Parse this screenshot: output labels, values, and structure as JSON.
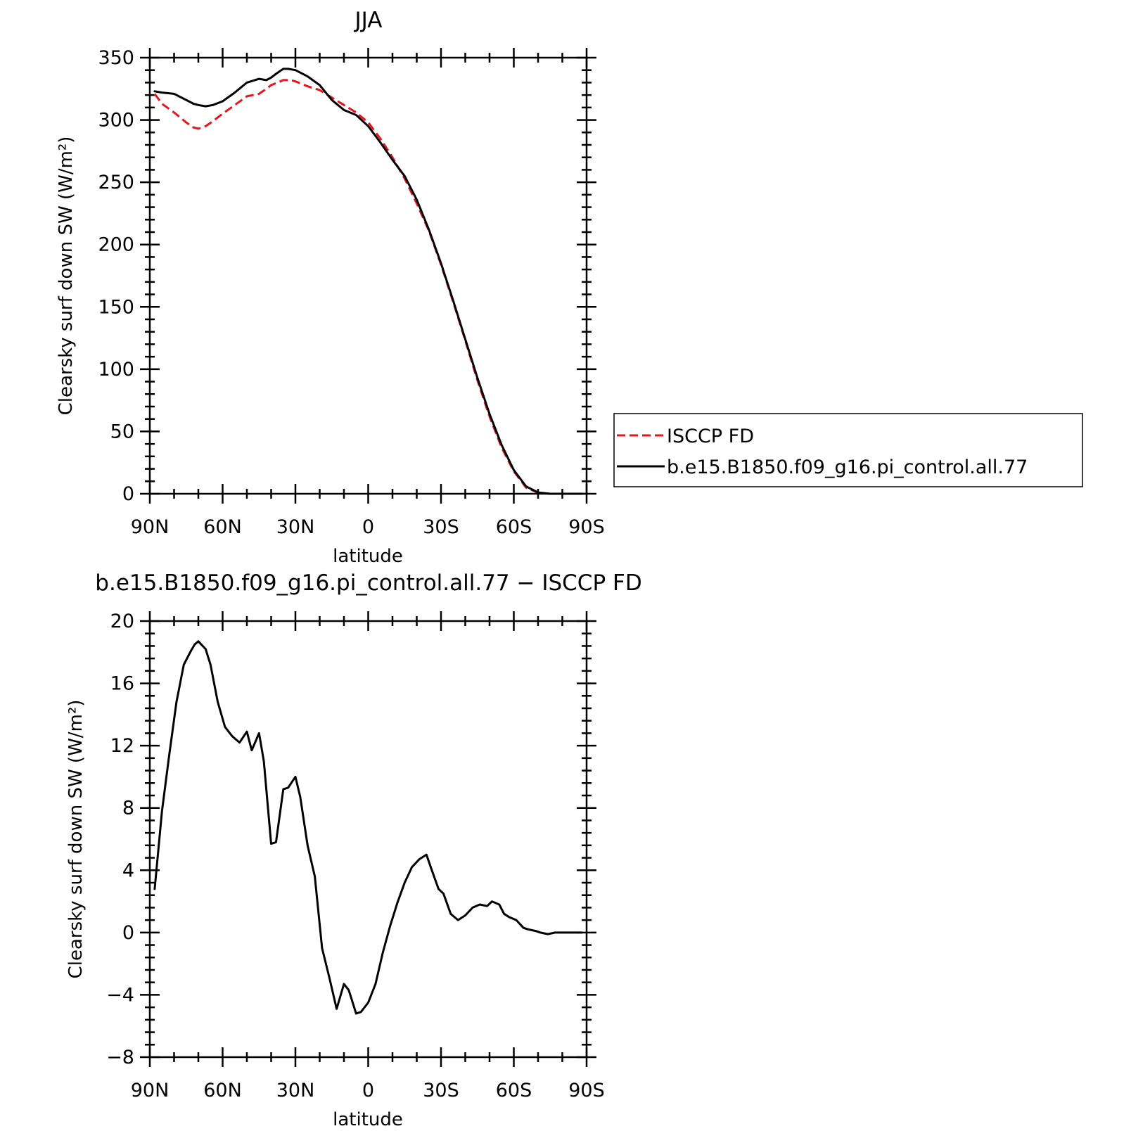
{
  "chart_data": [
    {
      "type": "line",
      "title": "JJA",
      "xlabel": "latitude",
      "ylabel": "Clearsky surf down SW (W/m²)",
      "xlim": [
        90,
        -90
      ],
      "ylim": [
        0,
        350
      ],
      "x_ticks": [
        {
          "value": 90,
          "label": "90N"
        },
        {
          "value": 60,
          "label": "60N"
        },
        {
          "value": 30,
          "label": "30N"
        },
        {
          "value": 0,
          "label": "0"
        },
        {
          "value": -30,
          "label": "30S"
        },
        {
          "value": -60,
          "label": "60S"
        },
        {
          "value": -90,
          "label": "90S"
        }
      ],
      "y_ticks": [
        0,
        50,
        100,
        150,
        200,
        250,
        300,
        350
      ],
      "grid": false,
      "legend": "right",
      "series": [
        {
          "name": "ISCCP FD",
          "color": "#e8141e",
          "dash": "dashed",
          "x": [
            88,
            85,
            80,
            75,
            72,
            70,
            67,
            64,
            60,
            55,
            50,
            45,
            42,
            40,
            35,
            32,
            30,
            25,
            20,
            15,
            10,
            5,
            0,
            -5,
            -10,
            -15,
            -20,
            -25,
            -30,
            -35,
            -40,
            -45,
            -50,
            -55,
            -60,
            -65,
            -70,
            -75,
            -80,
            -85,
            -88
          ],
          "y": [
            321,
            313,
            306,
            298,
            294,
            293,
            295,
            299,
            305,
            312,
            319,
            321,
            325,
            328,
            332,
            332,
            331,
            327,
            324,
            318,
            312,
            306,
            298,
            285,
            270,
            253,
            233,
            211,
            184,
            154,
            123,
            91,
            62,
            37,
            18,
            5,
            0.8,
            0,
            0,
            0,
            0
          ]
        },
        {
          "name": "b.e15.B1850.f09_g16.pi_control.all.77",
          "color": "#000000",
          "dash": "solid",
          "x": [
            88,
            85,
            80,
            75,
            72,
            70,
            67,
            64,
            60,
            55,
            50,
            45,
            42,
            40,
            38,
            35,
            33,
            30,
            25,
            20,
            15,
            10,
            5,
            0,
            -5,
            -10,
            -15,
            -20,
            -25,
            -30,
            -35,
            -40,
            -45,
            -50,
            -55,
            -60,
            -65,
            -70,
            -75,
            -80,
            -85,
            -88
          ],
          "y": [
            323,
            322,
            321,
            316,
            313,
            312,
            311,
            312,
            315,
            322,
            330,
            333,
            332,
            334,
            337,
            341,
            341,
            340,
            335,
            328,
            316,
            308,
            304,
            295,
            282,
            268,
            255,
            236,
            212,
            185,
            155,
            124,
            93,
            64,
            39,
            19,
            6,
            1,
            0,
            0,
            0,
            0
          ]
        }
      ]
    },
    {
      "type": "line",
      "title": "b.e15.B1850.f09_g16.pi_control.all.77 − ISCCP FD",
      "xlabel": "latitude",
      "ylabel": "Clearsky surf down SW (W/m²)",
      "xlim": [
        90,
        -90
      ],
      "ylim": [
        -8,
        20
      ],
      "x_ticks": [
        {
          "value": 90,
          "label": "90N"
        },
        {
          "value": 60,
          "label": "60N"
        },
        {
          "value": 30,
          "label": "30N"
        },
        {
          "value": 0,
          "label": "0"
        },
        {
          "value": -30,
          "label": "30S"
        },
        {
          "value": -60,
          "label": "60S"
        },
        {
          "value": -90,
          "label": "90S"
        }
      ],
      "y_ticks": [
        -8,
        -4,
        0,
        4,
        8,
        12,
        16,
        20
      ],
      "grid": false,
      "series": [
        {
          "color": "#000000",
          "dash": "solid",
          "x": [
            88,
            85,
            82,
            79,
            76,
            73,
            71.5,
            70,
            67,
            65,
            62,
            59,
            56,
            53,
            50,
            48,
            45,
            43,
            40,
            38,
            35,
            33,
            30,
            28,
            25,
            22,
            19,
            16,
            13,
            10,
            8,
            5,
            3,
            0,
            -3,
            -6,
            -9,
            -12,
            -15,
            -18,
            -21,
            -24,
            -26,
            -29,
            -31,
            -34,
            -37,
            -40,
            -43,
            -46,
            -49,
            -51,
            -54,
            -56,
            -58,
            -61,
            -64,
            -66,
            -69,
            -71,
            -74,
            -77,
            -80,
            -83,
            -86,
            -88
          ],
          "y": [
            2.8,
            7.8,
            11.4,
            14.8,
            17.2,
            18.1,
            18.5,
            18.7,
            18.2,
            17.2,
            14.8,
            13.2,
            12.6,
            12.2,
            12.9,
            11.7,
            12.8,
            11.0,
            5.7,
            5.8,
            9.2,
            9.3,
            10.0,
            8.7,
            5.6,
            3.6,
            -1.0,
            -2.9,
            -4.9,
            -3.3,
            -3.7,
            -5.2,
            -5.1,
            -4.5,
            -3.3,
            -1.3,
            0.4,
            1.9,
            3.2,
            4.2,
            4.7,
            5.0,
            4.1,
            2.8,
            2.5,
            1.2,
            0.8,
            1.1,
            1.6,
            1.8,
            1.7,
            2.0,
            1.8,
            1.2,
            1.0,
            0.8,
            0.3,
            0.2,
            0.1,
            0.0,
            -0.1,
            0.0,
            0.0,
            0.0,
            0.0,
            0.0
          ]
        }
      ]
    }
  ]
}
